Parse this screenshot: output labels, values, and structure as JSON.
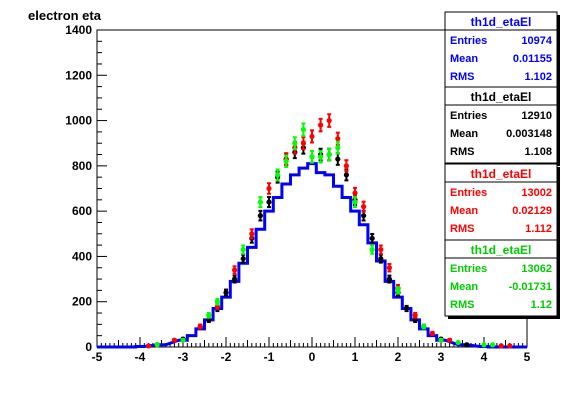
{
  "chart_data": {
    "type": "histogram",
    "title": "electron eta",
    "xlim": [
      -5,
      5
    ],
    "ylim": [
      0,
      1400
    ],
    "x_ticks": [
      "-5",
      "-4",
      "-3",
      "-2",
      "-1",
      "0",
      "1",
      "2",
      "3",
      "4",
      "5"
    ],
    "y_ticks": [
      "0",
      "200",
      "400",
      "600",
      "800",
      "1000",
      "1200",
      "1400"
    ],
    "grid": false,
    "series": [
      {
        "style": "step",
        "color": "#0000ff",
        "points": [
          [
            -4.0,
            2
          ],
          [
            -3.5,
            10
          ],
          [
            -3.0,
            30
          ],
          [
            -2.8,
            50
          ],
          [
            -2.6,
            80
          ],
          [
            -2.4,
            120
          ],
          [
            -2.2,
            170
          ],
          [
            -2.0,
            220
          ],
          [
            -1.8,
            290
          ],
          [
            -1.6,
            370
          ],
          [
            -1.4,
            440
          ],
          [
            -1.2,
            520
          ],
          [
            -1.0,
            600
          ],
          [
            -0.8,
            660
          ],
          [
            -0.6,
            720
          ],
          [
            -0.4,
            760
          ],
          [
            -0.2,
            790
          ],
          [
            0.0,
            810
          ],
          [
            0.2,
            770
          ],
          [
            0.4,
            760
          ],
          [
            0.6,
            710
          ],
          [
            0.8,
            660
          ],
          [
            1.0,
            600
          ],
          [
            1.2,
            540
          ],
          [
            1.4,
            460
          ],
          [
            1.6,
            380
          ],
          [
            1.8,
            290
          ],
          [
            2.0,
            220
          ],
          [
            2.2,
            170
          ],
          [
            2.4,
            120
          ],
          [
            2.6,
            80
          ],
          [
            2.8,
            50
          ],
          [
            3.0,
            30
          ],
          [
            3.5,
            10
          ],
          [
            4.0,
            2
          ]
        ],
        "legend": {
          "title": "th1d_etaEl",
          "entries": "10974",
          "mean": "0.01155",
          "rms": "1.102"
        }
      },
      {
        "style": "points",
        "color": "#000000",
        "points": [
          [
            -3.6,
            10
          ],
          [
            -3.0,
            35
          ],
          [
            -2.6,
            90
          ],
          [
            -2.4,
            120
          ],
          [
            -2.2,
            170
          ],
          [
            -2.0,
            240
          ],
          [
            -1.8,
            300
          ],
          [
            -1.6,
            390
          ],
          [
            -1.4,
            480
          ],
          [
            -1.2,
            580
          ],
          [
            -1.0,
            640
          ],
          [
            -0.8,
            750
          ],
          [
            -0.6,
            830
          ],
          [
            -0.4,
            860
          ],
          [
            -0.2,
            880
          ],
          [
            0.0,
            840
          ],
          [
            0.2,
            850
          ],
          [
            0.4,
            850
          ],
          [
            0.6,
            830
          ],
          [
            0.8,
            760
          ],
          [
            1.0,
            650
          ],
          [
            1.2,
            580
          ],
          [
            1.4,
            480
          ],
          [
            1.6,
            390
          ],
          [
            1.8,
            300
          ],
          [
            2.0,
            240
          ],
          [
            2.2,
            170
          ],
          [
            2.4,
            120
          ],
          [
            2.6,
            90
          ],
          [
            3.0,
            35
          ],
          [
            3.6,
            10
          ]
        ],
        "legend": {
          "title": "th1d_etaEl",
          "entries": "12910",
          "mean": "0.003148",
          "rms": "1.108"
        }
      },
      {
        "style": "points",
        "color": "#ff0000",
        "points": [
          [
            -3.8,
            5
          ],
          [
            -3.2,
            30
          ],
          [
            -2.6,
            90
          ],
          [
            -2.2,
            180
          ],
          [
            -1.8,
            340
          ],
          [
            -1.4,
            500
          ],
          [
            -1.0,
            700
          ],
          [
            -0.6,
            830
          ],
          [
            -0.4,
            880
          ],
          [
            -0.2,
            900
          ],
          [
            0.0,
            930
          ],
          [
            0.2,
            980
          ],
          [
            0.4,
            1000
          ],
          [
            0.6,
            920
          ],
          [
            0.8,
            800
          ],
          [
            1.0,
            680
          ],
          [
            1.2,
            620
          ],
          [
            1.6,
            430
          ],
          [
            1.8,
            350
          ],
          [
            2.0,
            260
          ],
          [
            2.4,
            140
          ],
          [
            2.8,
            60
          ],
          [
            3.2,
            30
          ],
          [
            4.4,
            5
          ],
          [
            4.6,
            5
          ]
        ],
        "legend": {
          "title": "th1d_etaEl",
          "entries": "13002",
          "mean": "0.02129",
          "rms": "1.112"
        }
      },
      {
        "style": "points",
        "color": "#00ff00",
        "points": [
          [
            -3.6,
            10
          ],
          [
            -3.0,
            30
          ],
          [
            -2.4,
            140
          ],
          [
            -2.2,
            200
          ],
          [
            -1.6,
            430
          ],
          [
            -1.2,
            640
          ],
          [
            -0.8,
            760
          ],
          [
            -0.6,
            820
          ],
          [
            -0.4,
            900
          ],
          [
            -0.2,
            960
          ],
          [
            0.0,
            840
          ],
          [
            0.2,
            840
          ],
          [
            0.4,
            850
          ],
          [
            0.6,
            880
          ],
          [
            1.0,
            640
          ],
          [
            1.4,
            430
          ],
          [
            2.0,
            250
          ],
          [
            2.6,
            90
          ],
          [
            3.0,
            30
          ],
          [
            3.4,
            20
          ],
          [
            4.0,
            10
          ],
          [
            4.2,
            10
          ]
        ],
        "legend": {
          "title": "th1d_etaEl",
          "entries": "13062",
          "mean": "-0.01731",
          "rms": "1.12"
        }
      }
    ],
    "stat_labels": {
      "entries": "Entries",
      "mean": "Mean",
      "rms": "RMS"
    }
  }
}
